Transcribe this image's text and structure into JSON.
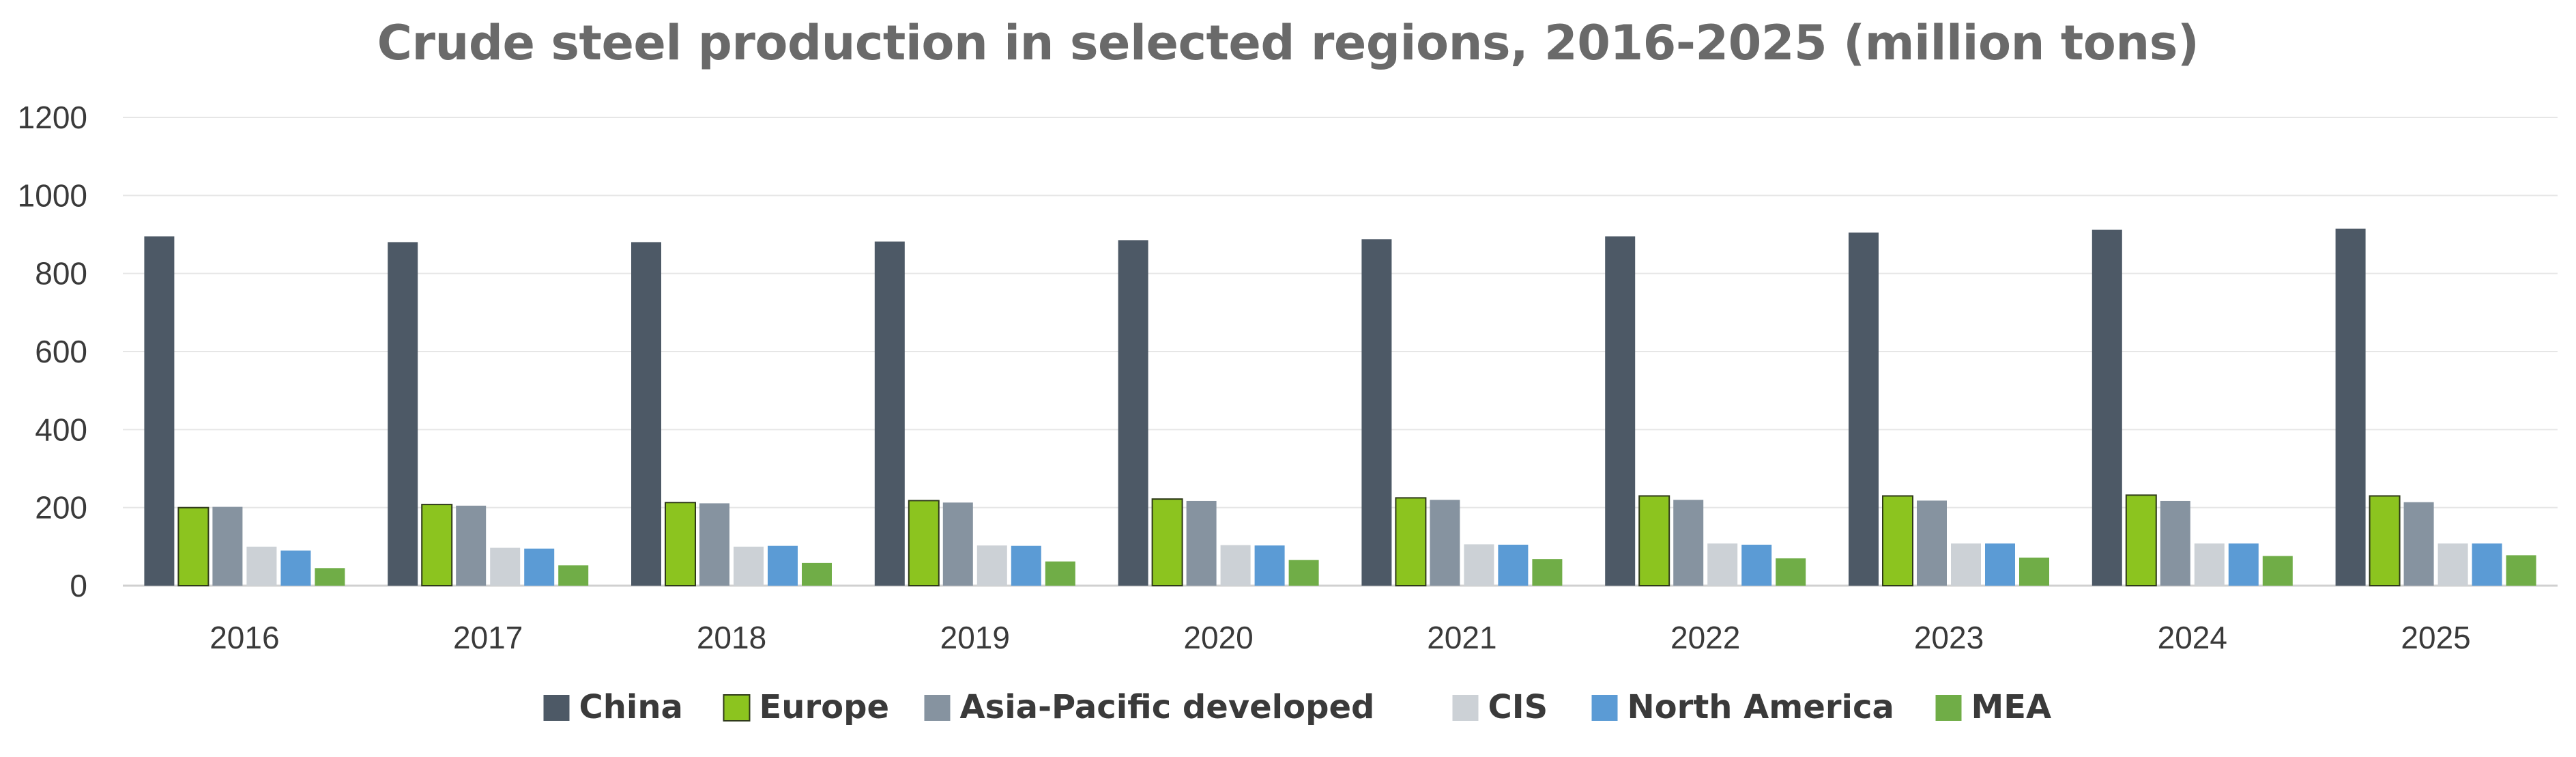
{
  "chart_data": {
    "type": "bar",
    "title": "Crude steel production in selected regions, 2016-2025 (million tons)",
    "xlabel": "",
    "ylabel": "",
    "ylim": [
      0,
      1200
    ],
    "yticks": [
      0,
      200,
      400,
      600,
      800,
      1000,
      1200
    ],
    "grid": true,
    "legend_position": "bottom",
    "categories": [
      "2016",
      "2017",
      "2018",
      "2019",
      "2020",
      "2021",
      "2022",
      "2023",
      "2024",
      "2025"
    ],
    "series": [
      {
        "name": "China",
        "color": "#4d5966",
        "values": [
          895,
          880,
          880,
          882,
          885,
          888,
          895,
          905,
          912,
          915
        ]
      },
      {
        "name": "Europe",
        "color": "#8cc41f",
        "values": [
          200,
          208,
          213,
          218,
          222,
          225,
          230,
          230,
          232,
          230
        ]
      },
      {
        "name": "Asia-Pacific developed",
        "color": "#8693a0",
        "values": [
          202,
          205,
          211,
          213,
          217,
          220,
          220,
          218,
          217,
          214
        ]
      },
      {
        "name": "CIS",
        "color": "#ccd1d6",
        "values": [
          100,
          97,
          100,
          103,
          104,
          106,
          108,
          108,
          108,
          108
        ]
      },
      {
        "name": "North America",
        "color": "#5b9bd5",
        "values": [
          90,
          95,
          102,
          102,
          103,
          105,
          105,
          108,
          108,
          108
        ]
      },
      {
        "name": "MEA",
        "color": "#70ad47",
        "values": [
          45,
          52,
          58,
          62,
          66,
          68,
          70,
          72,
          76,
          78
        ]
      }
    ]
  }
}
